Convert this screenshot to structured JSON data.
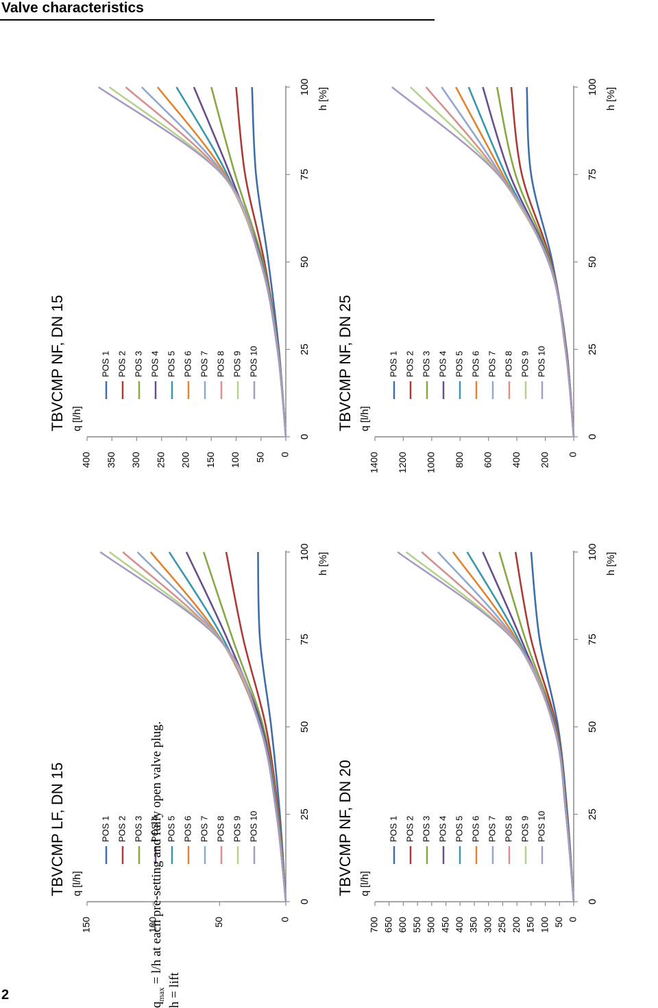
{
  "page": {
    "header": "Valve characteristics",
    "page_number": "2"
  },
  "footnotes": {
    "qmax_symbol": "q",
    "qmax_subscript": "max",
    "qmax_text": "= l/h at each pre-setting and fully open valve plug.",
    "lift": "h = lift"
  },
  "colors": {
    "POS 1": "#3f6ea7",
    "POS 2": "#ac3b37",
    "POS 3": "#86a943",
    "POS 4": "#6a4d8d",
    "POS 5": "#3898ad",
    "POS 6": "#e0852f",
    "POS 7": "#8ea8cf",
    "POS 8": "#d6918e",
    "POS 9": "#b5d28d",
    "POS 10": "#a89bc3"
  },
  "chart_data": [
    {
      "type": "line",
      "title": "TBVCMP LF, DN 15",
      "xlabel": "h [%]",
      "ylabel": "q [l/h]",
      "xlim": [
        0,
        100
      ],
      "ylim": [
        0,
        150
      ],
      "x_ticks": [
        "0",
        "25",
        "50",
        "75",
        "100"
      ],
      "y_ticks": [
        "0",
        "50",
        "100",
        "150"
      ],
      "x": [
        0,
        25,
        50,
        75,
        100
      ],
      "legend": "top-left",
      "series": [
        {
          "name": "POS 1",
          "values": [
            0,
            4.5,
            11,
            19.5,
            21
          ]
        },
        {
          "name": "POS 2",
          "values": [
            0,
            5.5,
            15,
            32,
            45
          ]
        },
        {
          "name": "POS 3",
          "values": [
            0,
            6,
            17,
            40,
            62
          ]
        },
        {
          "name": "POS 4",
          "values": [
            0,
            6.5,
            18,
            44,
            75
          ]
        },
        {
          "name": "POS 5",
          "values": [
            0,
            6.8,
            19,
            47,
            88
          ]
        },
        {
          "name": "POS 6",
          "values": [
            0,
            7,
            19.5,
            49,
            102
          ]
        },
        {
          "name": "POS 7",
          "values": [
            0,
            7,
            19.5,
            49.5,
            112
          ]
        },
        {
          "name": "POS 8",
          "values": [
            0,
            7,
            19.5,
            50,
            123
          ]
        },
        {
          "name": "POS 9",
          "values": [
            0,
            7,
            19.5,
            50,
            133
          ]
        },
        {
          "name": "POS 10",
          "values": [
            0,
            7,
            19.5,
            50,
            140
          ]
        }
      ]
    },
    {
      "type": "line",
      "title": "TBVCMP NF, DN 15",
      "xlabel": "h [%]",
      "ylabel": "q [l/h]",
      "xlim": [
        0,
        100
      ],
      "ylim": [
        0,
        400
      ],
      "x_ticks": [
        "0",
        "25",
        "50",
        "75",
        "100"
      ],
      "y_ticks": [
        "0",
        "50",
        "100",
        "150",
        "200",
        "250",
        "300",
        "350",
        "400"
      ],
      "x": [
        0,
        25,
        50,
        75,
        100
      ],
      "legend": "top-left",
      "series": [
        {
          "name": "POS 1",
          "values": [
            0,
            14,
            35,
            60,
            68
          ]
        },
        {
          "name": "POS 2",
          "values": [
            0,
            15,
            43,
            82,
            100
          ]
        },
        {
          "name": "POS 3",
          "values": [
            0,
            15.5,
            46,
            102,
            150
          ]
        },
        {
          "name": "POS 4",
          "values": [
            0,
            16,
            48,
            112,
            185
          ]
        },
        {
          "name": "POS 5",
          "values": [
            0,
            16,
            49,
            118,
            220
          ]
        },
        {
          "name": "POS 6",
          "values": [
            0,
            16.5,
            50,
            122,
            258
          ]
        },
        {
          "name": "POS 7",
          "values": [
            0,
            16.5,
            50.5,
            125,
            290
          ]
        },
        {
          "name": "POS 8",
          "values": [
            0,
            17,
            51,
            127,
            322
          ]
        },
        {
          "name": "POS 9",
          "values": [
            0,
            17,
            51,
            128,
            355
          ]
        },
        {
          "name": "POS 10",
          "values": [
            0,
            17,
            51,
            128,
            377
          ]
        }
      ]
    },
    {
      "type": "line",
      "title": "TBVCMP NF, DN 20",
      "xlabel": "h [%]",
      "ylabel": "q [l/h]",
      "xlim": [
        0,
        100
      ],
      "ylim": [
        0,
        700
      ],
      "x_ticks": [
        "0",
        "25",
        "50",
        "75",
        "100"
      ],
      "y_ticks": [
        "0",
        "50",
        "100",
        "150",
        "200",
        "250",
        "300",
        "350",
        "400",
        "450",
        "500",
        "550",
        "600",
        "650",
        "700"
      ],
      "x": [
        0,
        25,
        50,
        75,
        100
      ],
      "legend": "top-left",
      "series": [
        {
          "name": "POS 1",
          "values": [
            0,
            22,
            55,
            120,
            150
          ]
        },
        {
          "name": "POS 2",
          "values": [
            0,
            24,
            60,
            150,
            205
          ]
        },
        {
          "name": "POS 3",
          "values": [
            0,
            25,
            63,
            170,
            262
          ]
        },
        {
          "name": "POS 4",
          "values": [
            0,
            26,
            65,
            185,
            320
          ]
        },
        {
          "name": "POS 5",
          "values": [
            0,
            26,
            67,
            195,
            375
          ]
        },
        {
          "name": "POS 6",
          "values": [
            0,
            27,
            68,
            202,
            425
          ]
        },
        {
          "name": "POS 7",
          "values": [
            0,
            27,
            69,
            207,
            478
          ]
        },
        {
          "name": "POS 8",
          "values": [
            0,
            27,
            70,
            210,
            535
          ]
        },
        {
          "name": "POS 9",
          "values": [
            0,
            27,
            70,
            212,
            590
          ]
        },
        {
          "name": "POS 10",
          "values": [
            0,
            27,
            70,
            213,
            620
          ]
        }
      ]
    },
    {
      "type": "line",
      "title": "TBVCMP NF, DN 25",
      "xlabel": "h [%]",
      "ylabel": "q [l/h]",
      "xlim": [
        0,
        100
      ],
      "ylim": [
        0,
        1400
      ],
      "x_ticks": [
        "0",
        "25",
        "50",
        "75",
        "100"
      ],
      "y_ticks": [
        "0",
        "200",
        "400",
        "600",
        "800",
        "1000",
        "1200",
        "1400"
      ],
      "x": [
        0,
        25,
        50,
        75,
        100
      ],
      "legend": "top-left",
      "series": [
        {
          "name": "POS 1",
          "values": [
            0,
            50,
            150,
            300,
            330
          ]
        },
        {
          "name": "POS 2",
          "values": [
            0,
            52,
            160,
            365,
            440
          ]
        },
        {
          "name": "POS 3",
          "values": [
            0,
            54,
            165,
            410,
            540
          ]
        },
        {
          "name": "POS 4",
          "values": [
            0,
            55,
            170,
            450,
            640
          ]
        },
        {
          "name": "POS 5",
          "values": [
            0,
            56,
            172,
            480,
            740
          ]
        },
        {
          "name": "POS 6",
          "values": [
            0,
            57,
            174,
            500,
            830
          ]
        },
        {
          "name": "POS 7",
          "values": [
            0,
            57,
            175,
            515,
            930
          ]
        },
        {
          "name": "POS 8",
          "values": [
            0,
            58,
            176,
            525,
            1040
          ]
        },
        {
          "name": "POS 9",
          "values": [
            0,
            58,
            177,
            530,
            1150
          ]
        },
        {
          "name": "POS 10",
          "values": [
            0,
            58,
            178,
            533,
            1280
          ]
        }
      ]
    }
  ]
}
